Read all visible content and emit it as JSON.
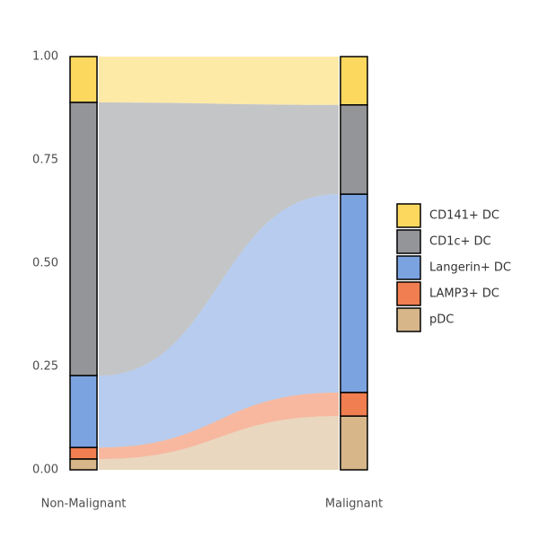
{
  "chart_data": {
    "type": "alluvial",
    "categories": [
      "Non-Malignant",
      "Malignant"
    ],
    "series": [
      {
        "name": "CD141+ DC",
        "color": "#fdd85e",
        "values": [
          0.111,
          0.117
        ]
      },
      {
        "name": "CD1c+ DC",
        "color": "#939598",
        "values": [
          0.661,
          0.216
        ]
      },
      {
        "name": "Langerin+ DC",
        "color": "#7ba3e0",
        "values": [
          0.174,
          0.48
        ]
      },
      {
        "name": "LAMP3+ DC",
        "color": "#f07e50",
        "values": [
          0.028,
          0.057
        ]
      },
      {
        "name": "pDC",
        "color": "#d7b78a",
        "values": [
          0.026,
          0.13
        ]
      }
    ],
    "ylim": [
      0,
      1
    ],
    "yticks": [
      {
        "value": 0,
        "label": "0.00"
      },
      {
        "value": 0.25,
        "label": "0.25"
      },
      {
        "value": 0.5,
        "label": "0.50"
      },
      {
        "value": 0.75,
        "label": "0.75"
      },
      {
        "value": 1,
        "label": "1.00"
      }
    ],
    "legend": "right"
  }
}
